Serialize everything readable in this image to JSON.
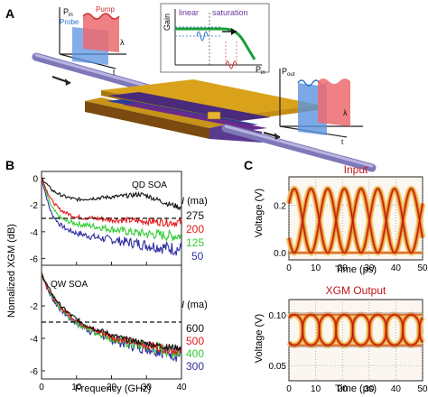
{
  "panel_a": {
    "letter": "A",
    "pin_label": "P",
    "pin_sub": "in",
    "probe_label": "Probe",
    "pump_label": "Pump",
    "lambda": "λ",
    "t": "t",
    "gain_label": "Gain",
    "linear_label": "linear",
    "saturation_label": "saturation",
    "gain_xaxis": "P",
    "gain_xaxis_sub": "in",
    "pout_label": "P",
    "pout_sub": "out",
    "colors": {
      "probe": "#3a7bd5",
      "pump": "#e0393e",
      "chip_top": "#5a2a82",
      "contacts": "#f2a51a"
    }
  },
  "panel_b": {
    "letter": "B",
    "ylabel": "Nomalized XGM (dB)",
    "xlabel": "Frequency (GHz)",
    "x_ticks": [
      "0",
      "10",
      "20",
      "30",
      "40"
    ],
    "top_y_ticks": [
      "0",
      "-2",
      "-4",
      "-6"
    ],
    "bottom_y_ticks": [
      "-2",
      "-4",
      "-6"
    ],
    "qd_label": "QD SOA",
    "qw_label": "QW SOA",
    "current_label": "I (ma)",
    "qd_currents": [
      "275",
      "200",
      "125",
      "50"
    ],
    "qw_currents": [
      "600",
      "500",
      "400",
      "300"
    ],
    "series_colors": [
      "#111111",
      "#e41a1c",
      "#33cc33",
      "#3030a0"
    ]
  },
  "panel_c": {
    "letter": "C",
    "input_title": "Input",
    "output_title": "XGM Output",
    "ylabel": "Voltage (V)",
    "xlabel": "Time (ps)",
    "x_ticks": [
      "0",
      "10",
      "20",
      "30",
      "40",
      "50"
    ],
    "input_y_ticks": [
      "0.2",
      "0.0"
    ],
    "output_y_ticks": [
      "0.10",
      "0.05"
    ],
    "title_color": "#c0161b"
  },
  "chart_data": [
    {
      "type": "line",
      "title": "QD SOA",
      "xlabel": "Frequency (GHz)",
      "ylabel": "Nomalized XGM (dB)",
      "xlim": [
        0,
        40
      ],
      "ylim": [
        -6.5,
        0.5
      ],
      "x": [
        0,
        1,
        2,
        3,
        5,
        7,
        10,
        15,
        20,
        25,
        28,
        30,
        33,
        36,
        40
      ],
      "series": [
        {
          "name": "275",
          "values": [
            0,
            -0.3,
            -0.6,
            -0.9,
            -1.2,
            -1.4,
            -1.6,
            -1.5,
            -1.4,
            -1.3,
            -1.2,
            -1.3,
            -1.6,
            -1.9,
            -2.2
          ]
        },
        {
          "name": "200",
          "values": [
            0,
            -0.6,
            -1.2,
            -1.7,
            -2.3,
            -2.6,
            -2.9,
            -3.0,
            -3.1,
            -3.15,
            -3.2,
            -3.2,
            -3.25,
            -3.3,
            -3.3
          ]
        },
        {
          "name": "125",
          "values": [
            0,
            -0.8,
            -1.6,
            -2.2,
            -2.9,
            -3.2,
            -3.4,
            -3.6,
            -3.8,
            -4.0,
            -4.1,
            -4.15,
            -4.2,
            -4.3,
            -4.3
          ]
        },
        {
          "name": "50",
          "values": [
            0,
            -1.0,
            -2.0,
            -2.7,
            -3.4,
            -3.8,
            -4.1,
            -4.4,
            -4.6,
            -4.8,
            -4.9,
            -5.0,
            -5.1,
            -5.2,
            -5.3
          ]
        }
      ],
      "reference_line": -3
    },
    {
      "type": "line",
      "title": "QW SOA",
      "xlabel": "Frequency (GHz)",
      "ylabel": "Nomalized XGM (dB)",
      "xlim": [
        0,
        40
      ],
      "ylim": [
        -6.5,
        0.5
      ],
      "x": [
        0,
        2,
        4,
        6,
        8,
        10,
        12,
        15,
        18,
        20,
        25,
        30,
        35,
        40
      ],
      "series": [
        {
          "name": "600",
          "values": [
            0,
            -0.9,
            -1.6,
            -2.1,
            -2.5,
            -2.8,
            -3.1,
            -3.4,
            -3.6,
            -3.8,
            -4.1,
            -4.3,
            -4.5,
            -4.6
          ]
        },
        {
          "name": "500",
          "values": [
            0,
            -1.0,
            -1.7,
            -2.2,
            -2.6,
            -2.9,
            -3.15,
            -3.5,
            -3.7,
            -3.9,
            -4.2,
            -4.4,
            -4.6,
            -4.8
          ]
        },
        {
          "name": "400",
          "values": [
            0,
            -1.1,
            -1.8,
            -2.3,
            -2.7,
            -3.0,
            -3.25,
            -3.6,
            -3.8,
            -4.0,
            -4.3,
            -4.5,
            -4.7,
            -4.9
          ]
        },
        {
          "name": "300",
          "values": [
            0,
            -1.15,
            -1.85,
            -2.35,
            -2.75,
            -3.05,
            -3.3,
            -3.65,
            -3.85,
            -4.05,
            -4.35,
            -4.55,
            -4.75,
            -5.0
          ]
        }
      ],
      "reference_line": -3
    },
    {
      "type": "line",
      "title": "Input",
      "xlabel": "Time (ps)",
      "ylabel": "Voltage (V)",
      "xlim": [
        0,
        50
      ],
      "ylim": [
        -0.03,
        0.32
      ],
      "period_ps": 12.5,
      "levels": [
        0.0,
        0.27
      ]
    },
    {
      "type": "line",
      "title": "XGM Output",
      "xlabel": "Time (ps)",
      "ylabel": "Voltage (V)",
      "xlim": [
        0,
        50
      ],
      "ylim": [
        0.035,
        0.115
      ],
      "period_ps": 12.5,
      "levels": [
        0.07,
        0.1
      ]
    }
  ]
}
